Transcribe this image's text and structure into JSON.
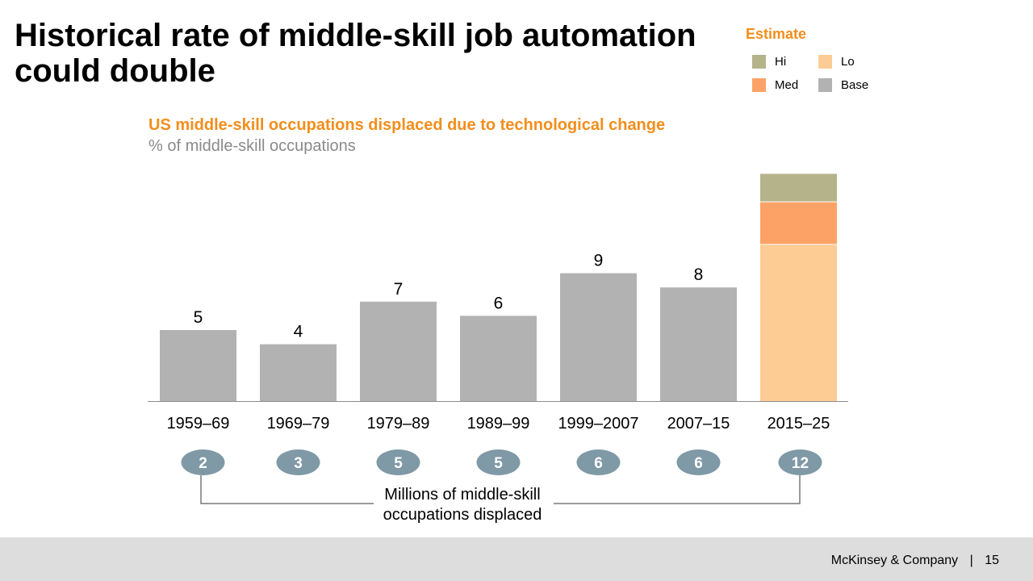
{
  "slide": {
    "title": "Historical rate of middle-skill job automation could double",
    "footer": {
      "company": "McKinsey & Company",
      "separator": "|",
      "page_number": "15"
    }
  },
  "legend": {
    "title": "Estimate",
    "items": [
      {
        "key": "hi",
        "label": "Hi",
        "color": "#b5b38a"
      },
      {
        "key": "lo",
        "label": "Lo",
        "color": "#fdcc94"
      },
      {
        "key": "med",
        "label": "Med",
        "color": "#fda266"
      },
      {
        "key": "base",
        "label": "Base",
        "color": "#b2b2b2"
      }
    ]
  },
  "chart_data": {
    "type": "bar",
    "title": "US middle-skill occupations displaced due to technological change",
    "subtitle": "% of middle-skill occupations",
    "categories": [
      "1959–69",
      "1969–79",
      "1979–89",
      "1989–99",
      "1999–2007",
      "2007–15",
      "2015–25"
    ],
    "values": [
      5,
      4,
      7,
      6,
      9,
      8,
      null
    ],
    "value_labels": [
      "5",
      "4",
      "7",
      "6",
      "9",
      "8",
      ""
    ],
    "estimate_2015_25": {
      "lo": 11,
      "med": 14,
      "hi": 16
    },
    "ylim": [
      0,
      17
    ],
    "grid": false,
    "bar_color": "#b2b2b2",
    "colors": {
      "lo": "#fdcc94",
      "med": "#fda266",
      "hi": "#b5b38a"
    },
    "displaced_millions": {
      "label": "Millions of middle-skill occupations displaced",
      "label_lines": [
        "Millions of middle-skill",
        "occupations displaced"
      ],
      "values": [
        "2",
        "3",
        "5",
        "5",
        "6",
        "6",
        "12"
      ],
      "badge_color": "#7f99a6"
    }
  }
}
